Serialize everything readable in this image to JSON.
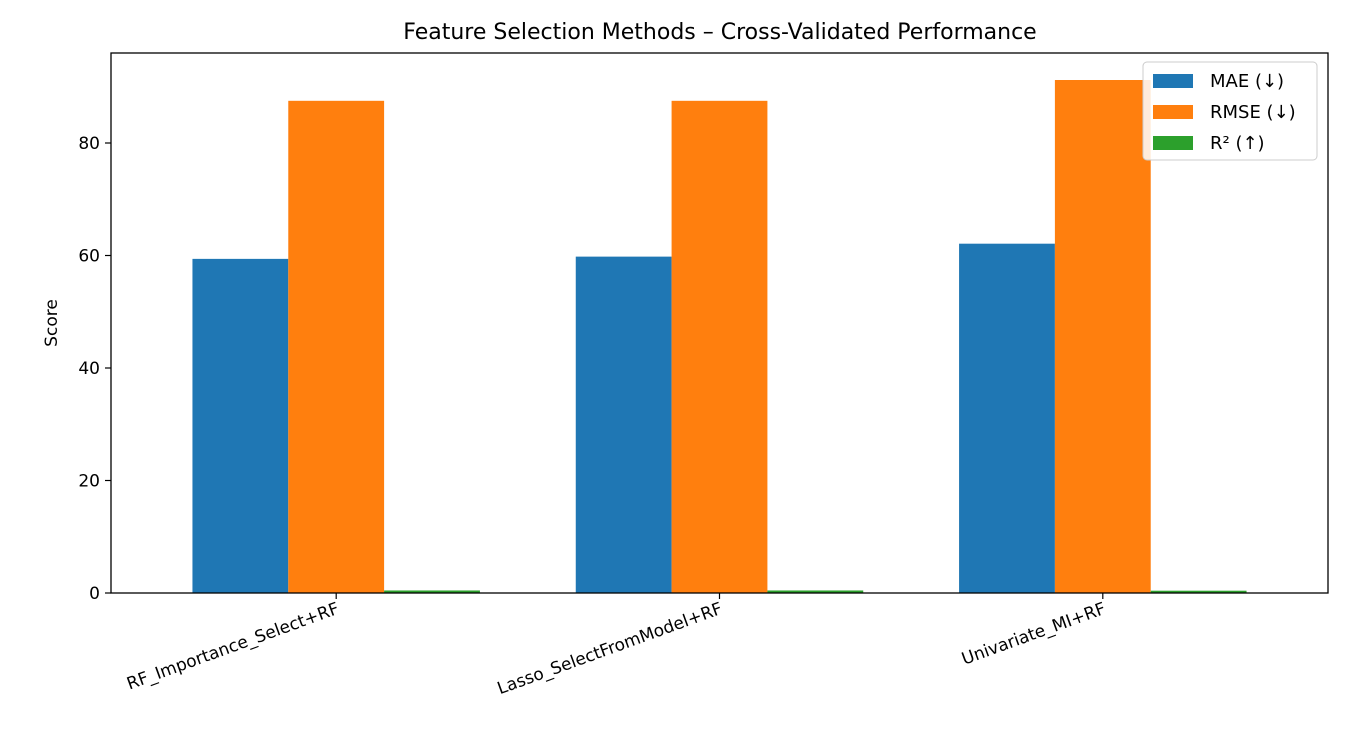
{
  "chart_data": {
    "type": "bar",
    "title": "Feature Selection Methods – Cross-Validated Performance",
    "xlabel": "",
    "ylabel": "Score",
    "ylim": [
      0,
      96
    ],
    "yticks": [
      0,
      20,
      40,
      60,
      80
    ],
    "categories": [
      "RF_Importance_Select+RF",
      "Lasso_SelectFromModel+RF",
      "Univariate_MI+RF"
    ],
    "series": [
      {
        "name": "MAE (↓)",
        "color": "#1f77b4",
        "values": [
          59.4,
          59.8,
          62.1
        ]
      },
      {
        "name": "RMSE (↓)",
        "color": "#ff7f0e",
        "values": [
          87.5,
          87.5,
          91.2
        ]
      },
      {
        "name": "R² (↑)",
        "color": "#2ca02c",
        "values": [
          0.45,
          0.45,
          0.41
        ]
      }
    ],
    "legend": "top-right",
    "grid": false
  }
}
